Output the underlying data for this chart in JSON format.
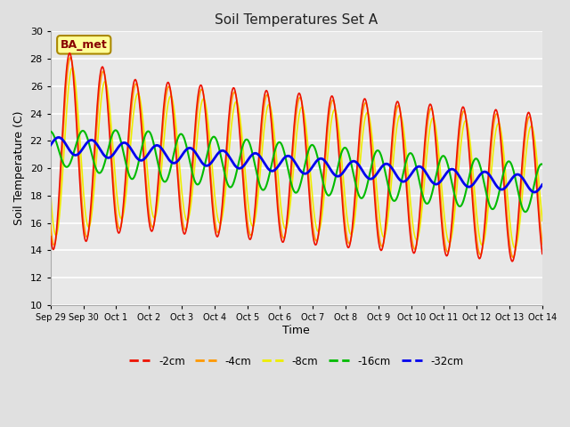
{
  "title": "Soil Temperatures Set A",
  "xlabel": "Time",
  "ylabel": "Soil Temperature (C)",
  "ylim": [
    10,
    30
  ],
  "yticks": [
    10,
    12,
    14,
    16,
    18,
    20,
    22,
    24,
    26,
    28,
    30
  ],
  "annotation": "BA_met",
  "background_color": "#e0e0e0",
  "plot_bg_color": "#e8e8e8",
  "grid_color": "#ffffff",
  "line_colors": {
    "-2cm": "#ee1100",
    "-4cm": "#ff9900",
    "-8cm": "#eeee00",
    "-16cm": "#00bb00",
    "-32cm": "#0000ee"
  },
  "x_tick_labels": [
    "Sep 29",
    "Sep 30",
    "Oct 1",
    "Oct 2",
    "Oct 3",
    "Oct 4",
    "Oct 5",
    "Oct 6",
    "Oct 7",
    "Oct 8",
    "Oct 9",
    "Oct 10",
    "Oct 11",
    "Oct 12",
    "Oct 13",
    "Oct 14"
  ],
  "x_tick_positions": [
    0,
    1,
    2,
    3,
    4,
    5,
    6,
    7,
    8,
    9,
    10,
    11,
    12,
    13,
    14,
    15
  ]
}
